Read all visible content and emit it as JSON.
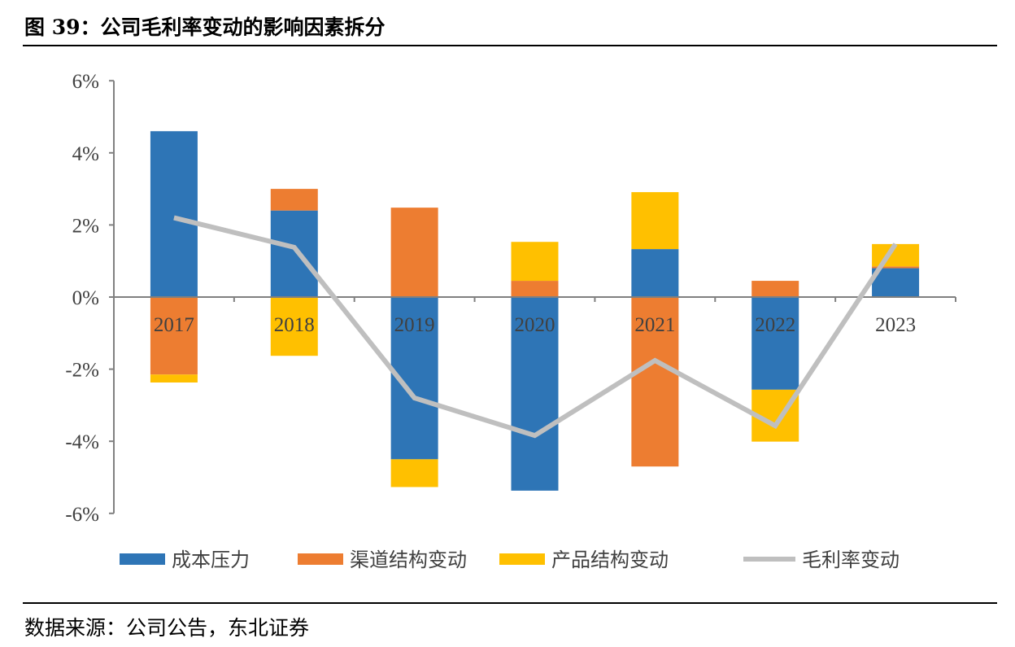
{
  "title": "图 39：公司毛利率变动的影响因素拆分",
  "source": "数据来源：公司公告，东北证券",
  "chart_data": {
    "type": "bar",
    "stacked": true,
    "categories": [
      "2017",
      "2018",
      "2019",
      "2020",
      "2021",
      "2022",
      "2023"
    ],
    "ylim": [
      -6,
      6
    ],
    "yticks": [
      -6,
      -4,
      -2,
      0,
      2,
      4,
      6
    ],
    "ytick_labels": [
      "-6%",
      "-4%",
      "-2%",
      "0%",
      "2%",
      "4%",
      "6%"
    ],
    "grid": false,
    "legend_position": "bottom",
    "series": [
      {
        "name": "成本压力",
        "type": "bar",
        "color": "#2E75B6",
        "values": [
          4.6,
          2.4,
          -4.5,
          -5.37,
          1.33,
          -2.57,
          0.8
        ]
      },
      {
        "name": "渠道结构变动",
        "type": "bar",
        "color": "#ED7D31",
        "values": [
          -2.15,
          0.6,
          2.48,
          0.45,
          -4.7,
          0.45,
          0.05
        ]
      },
      {
        "name": "产品结构变动",
        "type": "bar",
        "color": "#FFC000",
        "values": [
          -0.22,
          -1.63,
          -0.77,
          1.08,
          1.58,
          -1.44,
          0.62
        ]
      },
      {
        "name": "毛利率变动",
        "type": "line",
        "color": "#BFBFBF",
        "values": [
          2.2,
          1.38,
          -2.8,
          -3.84,
          -1.76,
          -3.57,
          1.47
        ]
      }
    ]
  }
}
